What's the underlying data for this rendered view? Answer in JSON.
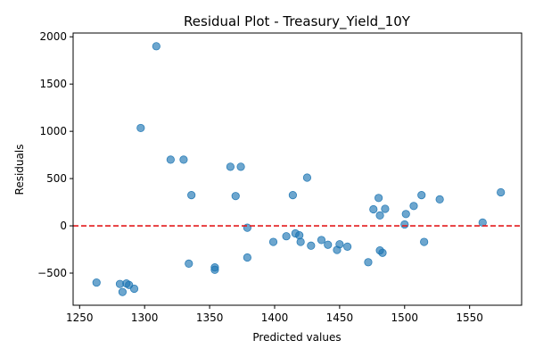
{
  "chart_data": {
    "type": "scatter",
    "title": "Residual Plot - Treasury_Yield_10Y",
    "xlabel": "Predicted values",
    "ylabel": "Residuals",
    "xlim": [
      1245,
      1590
    ],
    "ylim": [
      -840,
      2040
    ],
    "xticks": [
      1250,
      1300,
      1350,
      1400,
      1450,
      1500,
      1550
    ],
    "yticks": [
      -500,
      0,
      500,
      1000,
      1500,
      2000
    ],
    "xtick_labels": [
      "1250",
      "1300",
      "1350",
      "1400",
      "1450",
      "1500",
      "1550"
    ],
    "ytick_labels": [
      "−500",
      "0",
      "500",
      "1000",
      "1500",
      "2000"
    ],
    "grid": false,
    "reference_line": {
      "y": 0,
      "color": "#e41a1c",
      "style": "dashed"
    },
    "point_color": "#1f77b4",
    "points": [
      {
        "x": 1309,
        "y": 1900
      },
      {
        "x": 1297,
        "y": 1035
      },
      {
        "x": 1320,
        "y": 700
      },
      {
        "x": 1330,
        "y": 700
      },
      {
        "x": 1366,
        "y": 625
      },
      {
        "x": 1374,
        "y": 625
      },
      {
        "x": 1425,
        "y": 510
      },
      {
        "x": 1336,
        "y": 325
      },
      {
        "x": 1370,
        "y": 315
      },
      {
        "x": 1414,
        "y": 325
      },
      {
        "x": 1574,
        "y": 355
      },
      {
        "x": 1513,
        "y": 325
      },
      {
        "x": 1480,
        "y": 295
      },
      {
        "x": 1527,
        "y": 280
      },
      {
        "x": 1507,
        "y": 210
      },
      {
        "x": 1476,
        "y": 175
      },
      {
        "x": 1485,
        "y": 180
      },
      {
        "x": 1481,
        "y": 110
      },
      {
        "x": 1501,
        "y": 125
      },
      {
        "x": 1560,
        "y": 35
      },
      {
        "x": 1500,
        "y": 15
      },
      {
        "x": 1379,
        "y": -20
      },
      {
        "x": 1399,
        "y": -170
      },
      {
        "x": 1409,
        "y": -110
      },
      {
        "x": 1416,
        "y": -80
      },
      {
        "x": 1419,
        "y": -100
      },
      {
        "x": 1420,
        "y": -170
      },
      {
        "x": 1428,
        "y": -210
      },
      {
        "x": 1436,
        "y": -150
      },
      {
        "x": 1441,
        "y": -200
      },
      {
        "x": 1450,
        "y": -195
      },
      {
        "x": 1448,
        "y": -255
      },
      {
        "x": 1456,
        "y": -220
      },
      {
        "x": 1481,
        "y": -260
      },
      {
        "x": 1483,
        "y": -285
      },
      {
        "x": 1472,
        "y": -385
      },
      {
        "x": 1515,
        "y": -170
      },
      {
        "x": 1379,
        "y": -335
      },
      {
        "x": 1334,
        "y": -400
      },
      {
        "x": 1354,
        "y": -440
      },
      {
        "x": 1354,
        "y": -465
      },
      {
        "x": 1263,
        "y": -600
      },
      {
        "x": 1281,
        "y": -615
      },
      {
        "x": 1286,
        "y": -610
      },
      {
        "x": 1288,
        "y": -625
      },
      {
        "x": 1292,
        "y": -665
      },
      {
        "x": 1283,
        "y": -700
      }
    ]
  }
}
